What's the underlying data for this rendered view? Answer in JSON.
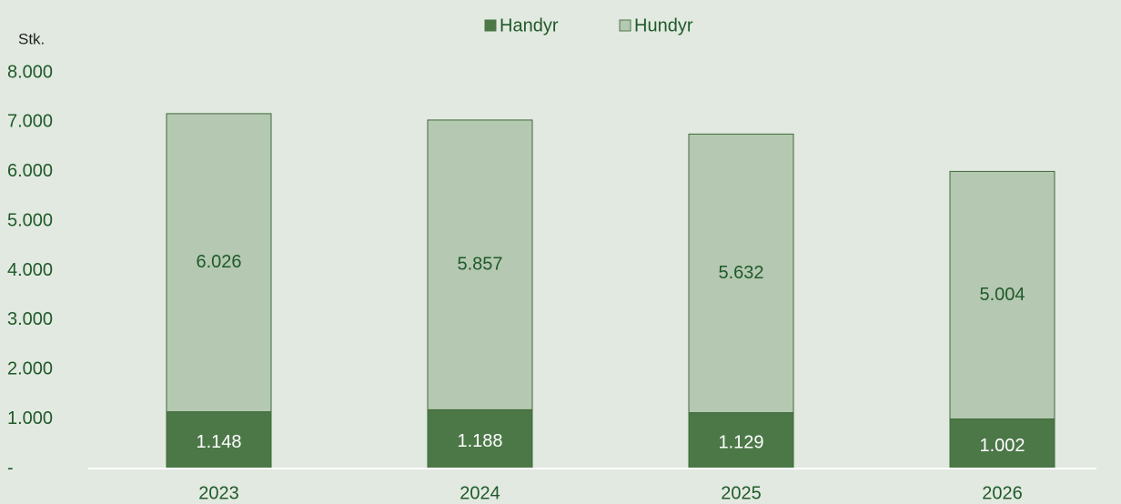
{
  "chart_data": {
    "type": "stacked_bar",
    "y_axis_label": "Stk.",
    "categories": [
      "2023",
      "2024",
      "2025",
      "2026"
    ],
    "series": [
      {
        "name": "Handyr",
        "color": "#4c7848",
        "values": [
          1148,
          1188,
          1129,
          1002
        ],
        "value_labels": [
          "1.148",
          "1.188",
          "1.129",
          "1.002"
        ]
      },
      {
        "name": "Hundyr",
        "color": "#b5c8b1",
        "values": [
          6026,
          5857,
          5632,
          5004
        ],
        "value_labels": [
          "6.026",
          "5.857",
          "5.632",
          "5.004"
        ]
      }
    ],
    "ylim": [
      0,
      8000
    ],
    "yticks": [
      {
        "value": 0,
        "label": "-"
      },
      {
        "value": 1000,
        "label": "1.000"
      },
      {
        "value": 2000,
        "label": "2.000"
      },
      {
        "value": 3000,
        "label": "3.000"
      },
      {
        "value": 4000,
        "label": "4.000"
      },
      {
        "value": 5000,
        "label": "5.000"
      },
      {
        "value": 6000,
        "label": "6.000"
      },
      {
        "value": 7000,
        "label": "7.000"
      },
      {
        "value": 8000,
        "label": "8.000"
      }
    ],
    "legend": "top"
  }
}
